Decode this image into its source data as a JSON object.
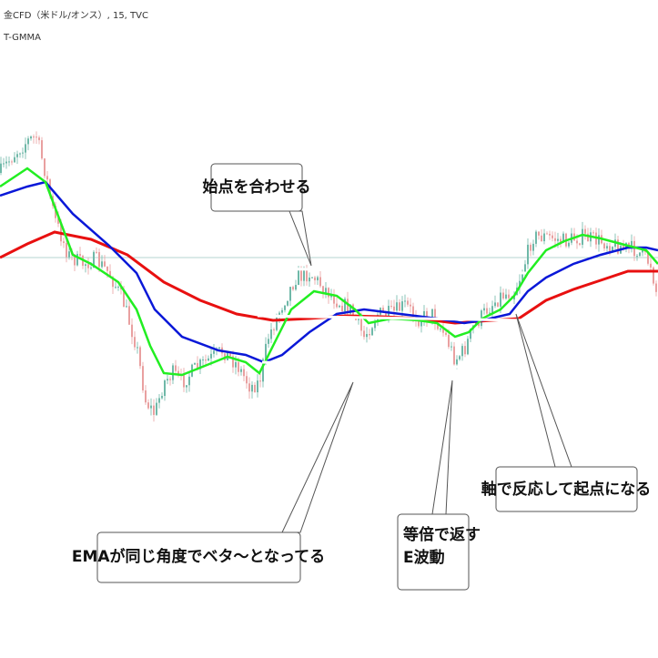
{
  "header": {
    "symbol": "金CFD（米ドル/オンス）, 15, TVC",
    "indicator": "T-GMMA"
  },
  "callouts": [
    {
      "lines": [
        "始点を合わせる"
      ]
    },
    {
      "lines": [
        "EMAが同じ角度でベタ〜となってる"
      ]
    },
    {
      "lines": [
        "等倍で返す",
        "E波動"
      ]
    },
    {
      "lines": [
        "軸で反応して起点になる"
      ]
    }
  ]
}
